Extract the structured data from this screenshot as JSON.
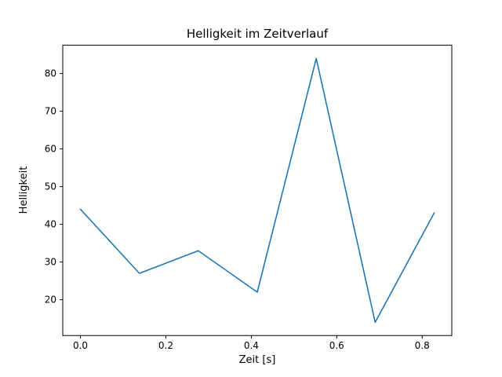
{
  "chart_data": {
    "type": "line",
    "title": "Helligkeit im Zeitverlauf",
    "xlabel": "Zeit [s]",
    "ylabel": "Helligkeit",
    "x": [
      0.0,
      0.138,
      0.276,
      0.414,
      0.552,
      0.69,
      0.828
    ],
    "values": [
      44,
      27,
      33,
      22,
      84,
      14,
      43
    ],
    "xlim": [
      -0.0414,
      0.8694
    ],
    "ylim": [
      10.5,
      87.5
    ],
    "xticks": [
      0.0,
      0.2,
      0.4,
      0.6,
      0.8
    ],
    "xtick_labels": [
      "0.0",
      "0.2",
      "0.4",
      "0.6",
      "0.8"
    ],
    "yticks": [
      20,
      30,
      40,
      50,
      60,
      70,
      80
    ],
    "ytick_labels": [
      "20",
      "30",
      "40",
      "50",
      "60",
      "70",
      "80"
    ],
    "line_color": "#1f77b4",
    "spine_color": "#000000",
    "grid": false,
    "legend_position": "none"
  }
}
